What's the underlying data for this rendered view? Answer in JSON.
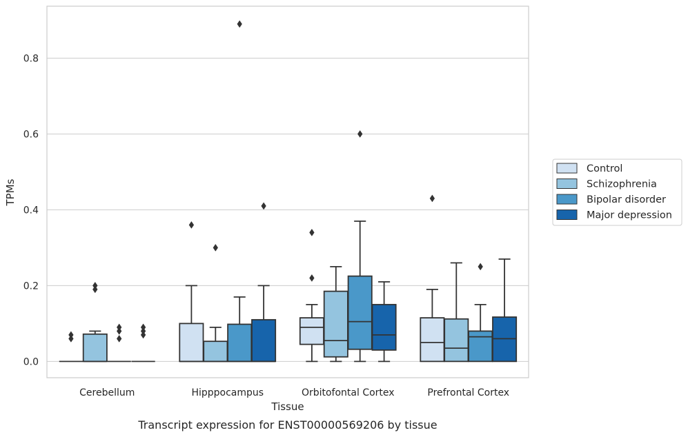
{
  "chart_data": {
    "type": "box",
    "xlabel": "Tissue",
    "ylabel": "TPMs",
    "caption": "Transcript expression for ENST00000569206 by tissue",
    "ylim": [
      -0.043,
      0.937
    ],
    "yticks": [
      0.0,
      0.2,
      0.4,
      0.6,
      0.8
    ],
    "ytick_labels": [
      "0.0",
      "0.2",
      "0.4",
      "0.6",
      "0.8"
    ],
    "grid": "horizontal",
    "legend_position": "right",
    "categories": [
      "Cerebellum",
      "Hipppocampus",
      "Orbitofontal Cortex",
      "Prefrontal Cortex"
    ],
    "series": [
      {
        "name": "Control",
        "color": "#d0e1f2",
        "boxes": [
          {
            "q1": 0.0,
            "median": 0.0,
            "q3": 0.0,
            "whislo": 0.0,
            "whishi": 0.0,
            "fliers": [
              0.06,
              0.07
            ]
          },
          {
            "q1": 0.0,
            "median": 0.0,
            "q3": 0.1,
            "whislo": 0.0,
            "whishi": 0.2,
            "fliers": [
              0.36
            ]
          },
          {
            "q1": 0.045,
            "median": 0.09,
            "q3": 0.115,
            "whislo": 0.0,
            "whishi": 0.15,
            "fliers": [
              0.22,
              0.34
            ]
          },
          {
            "q1": 0.0,
            "median": 0.05,
            "q3": 0.115,
            "whislo": 0.0,
            "whishi": 0.19,
            "fliers": [
              0.43
            ]
          }
        ]
      },
      {
        "name": "Schizophrenia",
        "color": "#94c4df",
        "boxes": [
          {
            "q1": 0.0,
            "median": 0.0,
            "q3": 0.072,
            "whislo": 0.0,
            "whishi": 0.08,
            "fliers": [
              0.19,
              0.2
            ]
          },
          {
            "q1": 0.0,
            "median": 0.0,
            "q3": 0.053,
            "whislo": 0.0,
            "whishi": 0.09,
            "fliers": [
              0.3
            ]
          },
          {
            "q1": 0.012,
            "median": 0.055,
            "q3": 0.185,
            "whislo": 0.0,
            "whishi": 0.25,
            "fliers": []
          },
          {
            "q1": 0.0,
            "median": 0.035,
            "q3": 0.112,
            "whislo": 0.0,
            "whishi": 0.26,
            "fliers": []
          }
        ]
      },
      {
        "name": "Bipolar disorder",
        "color": "#4a98c9",
        "boxes": [
          {
            "q1": 0.0,
            "median": 0.0,
            "q3": 0.0,
            "whislo": 0.0,
            "whishi": 0.0,
            "fliers": [
              0.06,
              0.08,
              0.09
            ]
          },
          {
            "q1": 0.0,
            "median": 0.0,
            "q3": 0.098,
            "whislo": 0.0,
            "whishi": 0.17,
            "fliers": [
              0.89
            ]
          },
          {
            "q1": 0.032,
            "median": 0.105,
            "q3": 0.225,
            "whislo": 0.0,
            "whishi": 0.37,
            "fliers": [
              0.6
            ]
          },
          {
            "q1": 0.0,
            "median": 0.065,
            "q3": 0.08,
            "whislo": 0.0,
            "whishi": 0.15,
            "fliers": [
              0.25
            ]
          }
        ]
      },
      {
        "name": "Major depression",
        "color": "#1764ab",
        "boxes": [
          {
            "q1": 0.0,
            "median": 0.0,
            "q3": 0.0,
            "whislo": 0.0,
            "whishi": 0.0,
            "fliers": [
              0.07,
              0.08,
              0.09
            ]
          },
          {
            "q1": 0.0,
            "median": 0.0,
            "q3": 0.11,
            "whislo": 0.0,
            "whishi": 0.2,
            "fliers": [
              0.41
            ]
          },
          {
            "q1": 0.03,
            "median": 0.07,
            "q3": 0.15,
            "whislo": 0.0,
            "whishi": 0.21,
            "fliers": []
          },
          {
            "q1": 0.0,
            "median": 0.06,
            "q3": 0.117,
            "whislo": 0.0,
            "whishi": 0.27,
            "fliers": []
          }
        ]
      }
    ],
    "colors": {
      "edge": "#333333",
      "grid": "#cccccc",
      "frame": "#cccccc",
      "legend_frame": "#cccccc"
    }
  }
}
